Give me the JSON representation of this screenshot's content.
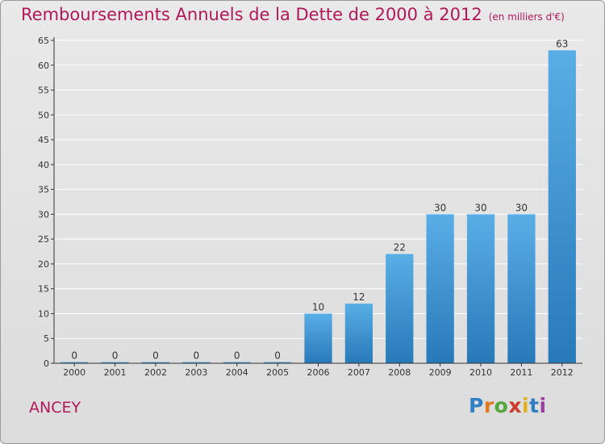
{
  "header": {
    "title": "Remboursements Annuels de la Dette de 2000 à 2012",
    "unit": "(en milliers d'€)"
  },
  "footer": {
    "commune": "ANCEY",
    "brand_letters": [
      "P",
      "r",
      "o",
      "x",
      "i",
      "t",
      "i"
    ]
  },
  "colors": {
    "title": "#b0185a",
    "bar_top": "#5aaee6",
    "bar_bottom": "#2779b8",
    "grid": "#ffffff",
    "axis": "#333333"
  },
  "chart_data": {
    "type": "bar",
    "categories": [
      "2000",
      "2001",
      "2002",
      "2003",
      "2004",
      "2005",
      "2006",
      "2007",
      "2008",
      "2009",
      "2010",
      "2011",
      "2012"
    ],
    "values": [
      0,
      0,
      0,
      0,
      0,
      0,
      10,
      12,
      22,
      30,
      30,
      30,
      63
    ],
    "ylim": [
      0,
      65
    ],
    "yticks": [
      0,
      5,
      10,
      15,
      20,
      25,
      30,
      35,
      40,
      45,
      50,
      55,
      60,
      65
    ],
    "grid": true,
    "data_labels": true
  }
}
